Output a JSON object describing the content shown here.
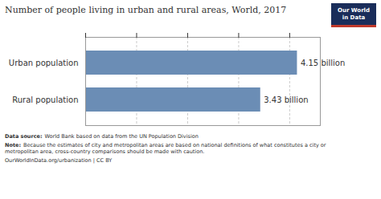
{
  "chart_data": {
    "type": "bar",
    "orientation": "horizontal",
    "title": "Number of people living in urban and rural areas, World, 2017",
    "categories": [
      "Urban population",
      "Rural population"
    ],
    "values": [
      4.15,
      3.43
    ],
    "value_labels": [
      "4.15 billion",
      "3.43 billion"
    ],
    "data_labels": true,
    "color": "#6b8db5",
    "xlim": [
      0,
      4.6
    ],
    "xticks": [
      0,
      1,
      2,
      3,
      4
    ],
    "tick_labels": "y",
    "grid": true,
    "annotations": [
      {
        "text": "Our World\nin Data"
      },
      {
        "bold": "Data source:",
        "text": "World Bank based on data from the UN Population Division"
      },
      {
        "bold": "Note:",
        "text": "Because the estimates of city and metropolitan areas are based on national definitions of what constitutes a city or\nmetropolitan area, cross-country comparisons should be made with caution."
      },
      {
        "text": "OurWorldInData.org/urbanization | CC BY"
      }
    ]
  }
}
